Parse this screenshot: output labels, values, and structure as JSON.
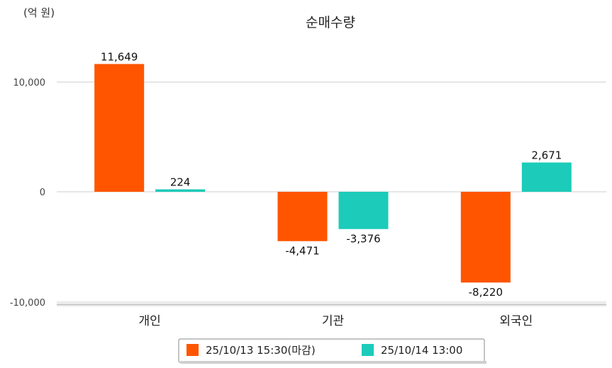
{
  "chart_data": {
    "type": "bar",
    "title": "순매수량",
    "unit_label": "(억 원)",
    "categories": [
      "개인",
      "기관",
      "외국인"
    ],
    "series": [
      {
        "name": "25/10/13 15:30(마감)",
        "color": "#ff5500",
        "values": [
          11649,
          -4471,
          -8220
        ],
        "labels": [
          "11,649",
          "-4,471",
          "-8,220"
        ]
      },
      {
        "name": "25/10/14 13:00",
        "color": "#1ccbb9",
        "values": [
          224,
          -3376,
          2671
        ],
        "labels": [
          "224",
          "-3,376",
          "2,671"
        ]
      }
    ],
    "yticks": [
      10000,
      0,
      -10000
    ],
    "ytick_labels": [
      "10,000",
      "0",
      "-10,000"
    ],
    "ylim": [
      -10000,
      10000
    ],
    "grid": true,
    "legend_position": "bottom"
  }
}
